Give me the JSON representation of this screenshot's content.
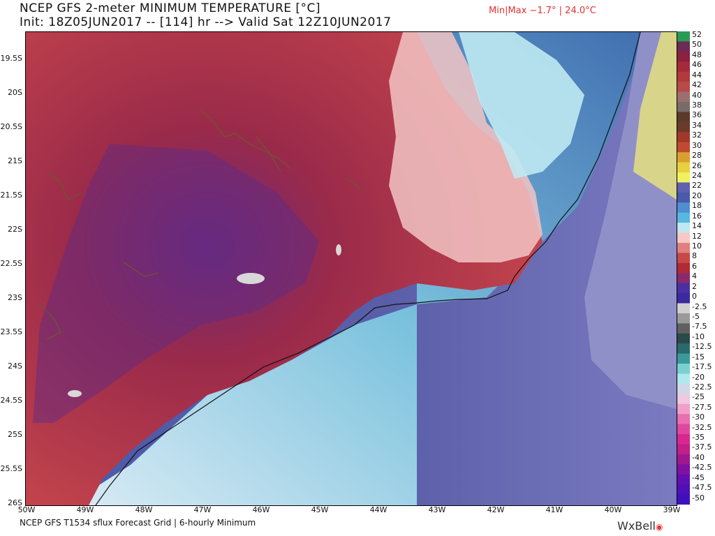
{
  "header": {
    "title": "NCEP GFS 2-meter MINIMUM TEMPERATURE [°C]",
    "subtitle": "Init: 18Z05JUN2017 -- [114] hr --> Valid Sat 12Z10JUN2017",
    "minmax": "Min|Max −1.7° | 24.0°C"
  },
  "axes": {
    "lat_labels": [
      "19.5S",
      "20S",
      "20.5S",
      "21S",
      "21.5S",
      "22S",
      "22.5S",
      "23S",
      "23.5S",
      "24S",
      "24.5S",
      "25S",
      "25.5S",
      "26S"
    ],
    "lon_labels": [
      "50W",
      "49W",
      "48W",
      "47W",
      "46W",
      "45W",
      "44W",
      "43W",
      "42W",
      "41W",
      "40W",
      "39W"
    ]
  },
  "colorbar": {
    "labels": [
      "52",
      "50",
      "48",
      "46",
      "44",
      "42",
      "40",
      "38",
      "36",
      "34",
      "32",
      "30",
      "28",
      "26",
      "24",
      "22",
      "20",
      "18",
      "16",
      "14",
      "12",
      "10",
      "8",
      "6",
      "4",
      "2",
      "0",
      "-2.5",
      "-5",
      "-7.5",
      "-10",
      "-12.5",
      "-15",
      "-17.5",
      "-20",
      "-22.5",
      "-25",
      "-27.5",
      "-30",
      "-32.5",
      "-35",
      "-37.5",
      "-40",
      "-42.5",
      "-45",
      "-47.5",
      "-50"
    ],
    "colors": [
      "#2a9a55",
      "#6b2b55",
      "#8b2040",
      "#a52a3a",
      "#b03a3c",
      "#b84a48",
      "#9a7070",
      "#7a6a6a",
      "#5a3a2a",
      "#6a3a2a",
      "#a2382a",
      "#c04a30",
      "#d8a030",
      "#e8d040",
      "#f0f060",
      "#6060b0",
      "#4a5aaa",
      "#4f8fd0",
      "#58b8e0",
      "#bfe8f0",
      "#f8c8c8",
      "#e08080",
      "#c84848",
      "#b02a38",
      "#8a2a6a",
      "#4a30a0",
      "#3a2aa0",
      "#d0d0d0",
      "#9a9a9a",
      "#606060",
      "#2a4a4a",
      "#2a6a6a",
      "#3a9a9a",
      "#7ad0d0",
      "#b0e8f0",
      "#d0d8e8",
      "#f0c8e0",
      "#f0a0c8",
      "#e870b0",
      "#e048a0",
      "#d82890",
      "#c02088",
      "#a01890",
      "#8010a0",
      "#6010b0",
      "#5010b8",
      "#4010c0"
    ]
  },
  "footer": {
    "text": "NCEP GFS T1534 sflux Forecast Grid | 6-hourly Minimum",
    "logo": "WxBell"
  }
}
